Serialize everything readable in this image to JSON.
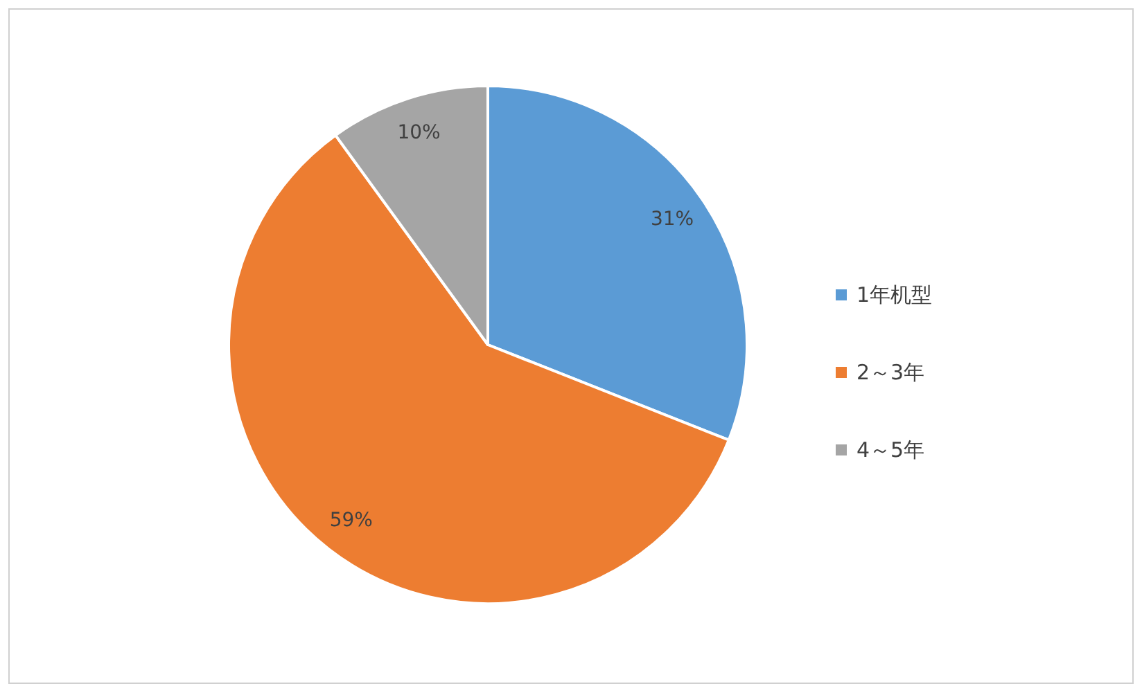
{
  "chart_data": {
    "type": "pie",
    "categories": [
      "1年机型",
      "2～3年",
      "4～5年"
    ],
    "values": [
      31,
      59,
      10
    ],
    "colors": [
      "#5b9bd5",
      "#ed7d31",
      "#a5a5a5"
    ],
    "value_labels": [
      "31%",
      "59%",
      "10%"
    ],
    "legend": "right"
  }
}
